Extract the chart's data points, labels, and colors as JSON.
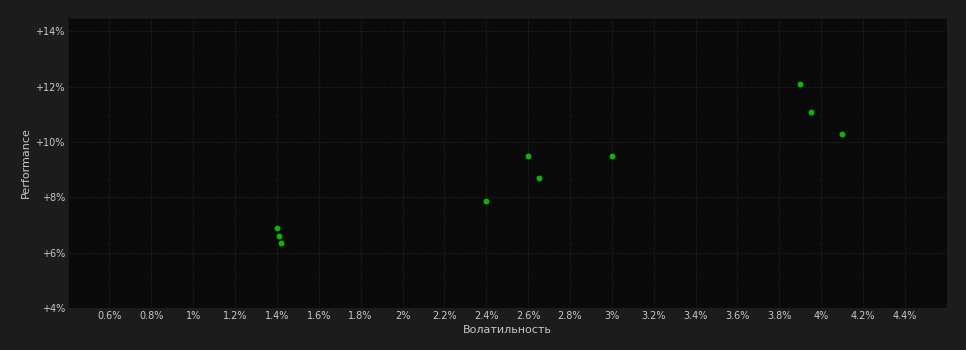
{
  "background_color": "#1c1c1c",
  "plot_bg_color": "#0a0a0a",
  "grid_color": "#2d2d2d",
  "text_color": "#c8c8c8",
  "point_color": "#00bb00",
  "point_size": 18,
  "scatter_x": [
    1.4,
    1.41,
    1.42,
    2.4,
    2.6,
    2.65,
    3.0,
    3.9,
    3.95,
    4.1
  ],
  "scatter_y": [
    6.9,
    6.6,
    6.35,
    7.85,
    9.5,
    8.7,
    9.5,
    12.1,
    11.1,
    10.3
  ],
  "xlabel": "Волатильность",
  "ylabel": "Performance",
  "xlim_lo": 0.004,
  "xlim_hi": 0.046,
  "ylim_lo": 4.0,
  "ylim_hi": 14.5,
  "xticks": [
    0.006,
    0.008,
    0.01,
    0.012,
    0.014,
    0.016,
    0.018,
    0.02,
    0.022,
    0.024,
    0.026,
    0.028,
    0.03,
    0.032,
    0.034,
    0.036,
    0.038,
    0.04,
    0.042,
    0.044
  ],
  "yticks": [
    4,
    6,
    8,
    10,
    12,
    14
  ],
  "xlabel_fontsize": 8,
  "ylabel_fontsize": 8,
  "tick_fontsize": 7
}
